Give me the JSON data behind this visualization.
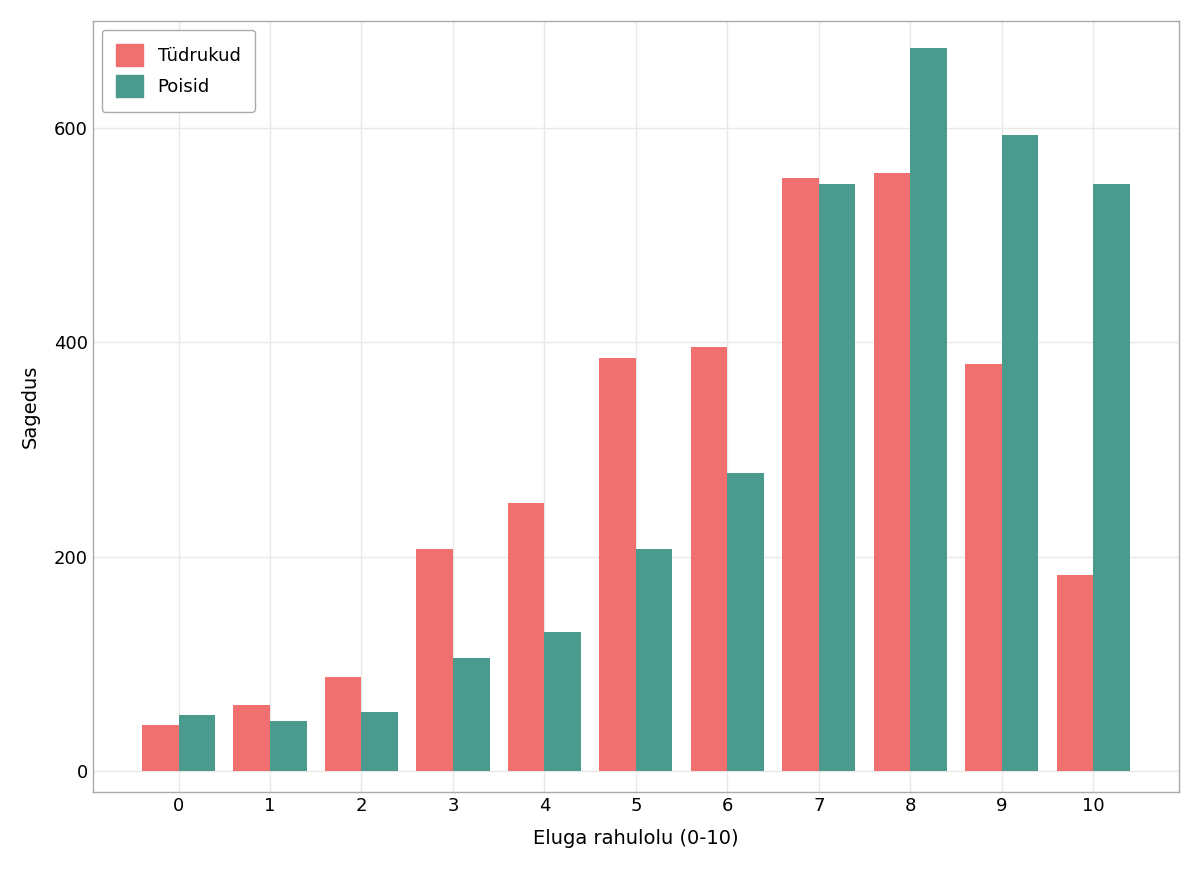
{
  "categories": [
    0,
    1,
    2,
    3,
    4,
    5,
    6,
    7,
    8,
    9,
    10
  ],
  "tudrukud": [
    43,
    62,
    88,
    207,
    250,
    385,
    396,
    553,
    558,
    380,
    183
  ],
  "poisid": [
    52,
    47,
    55,
    105,
    130,
    207,
    278,
    548,
    675,
    593,
    548
  ],
  "tudrukud_color": "#F07070",
  "poisid_color": "#4A9A8E",
  "xlabel": "Eluga rahulolu (0-10)",
  "ylabel": "Sagedus",
  "plot_background_color": "#FFFFFF",
  "fig_background_color": "#FFFFFF",
  "grid_color": "#E8E8E8",
  "legend_labels": [
    "Tüdrukud",
    "Poisid"
  ],
  "bar_width": 0.4,
  "ylim": [
    -20,
    700
  ],
  "yticks": [
    0,
    200,
    400,
    600
  ],
  "label_fontsize": 14,
  "tick_fontsize": 13,
  "legend_fontsize": 13,
  "spine_color": "#AAAAAA"
}
